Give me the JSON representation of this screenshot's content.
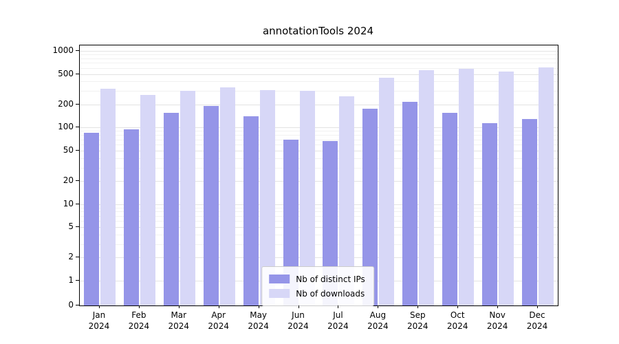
{
  "chart_data": {
    "type": "bar",
    "title": "annotationTools 2024",
    "xlabel": "",
    "ylabel": "",
    "yscale": "symlog",
    "ylim": [
      0,
      1000
    ],
    "yticks": [
      0,
      1,
      2,
      5,
      10,
      20,
      50,
      100,
      200,
      500,
      1000
    ],
    "grid": true,
    "legend_position": "lower center",
    "categories": [
      "Jan 2024",
      "Feb 2024",
      "Mar 2024",
      "Apr 2024",
      "May 2024",
      "Jun 2024",
      "Jul 2024",
      "Aug 2024",
      "Sep 2024",
      "Oct 2024",
      "Nov 2024",
      "Dec 2024"
    ],
    "series": [
      {
        "name": "Nb of distinct IPs",
        "color": "#9595e8",
        "values": [
          85,
          95,
          155,
          190,
          140,
          70,
          67,
          175,
          215,
          155,
          115,
          130
        ]
      },
      {
        "name": "Nb of downloads",
        "color": "#d7d7f7",
        "values": [
          320,
          265,
          300,
          335,
          310,
          305,
          255,
          450,
          560,
          590,
          535,
          615
        ]
      }
    ]
  }
}
